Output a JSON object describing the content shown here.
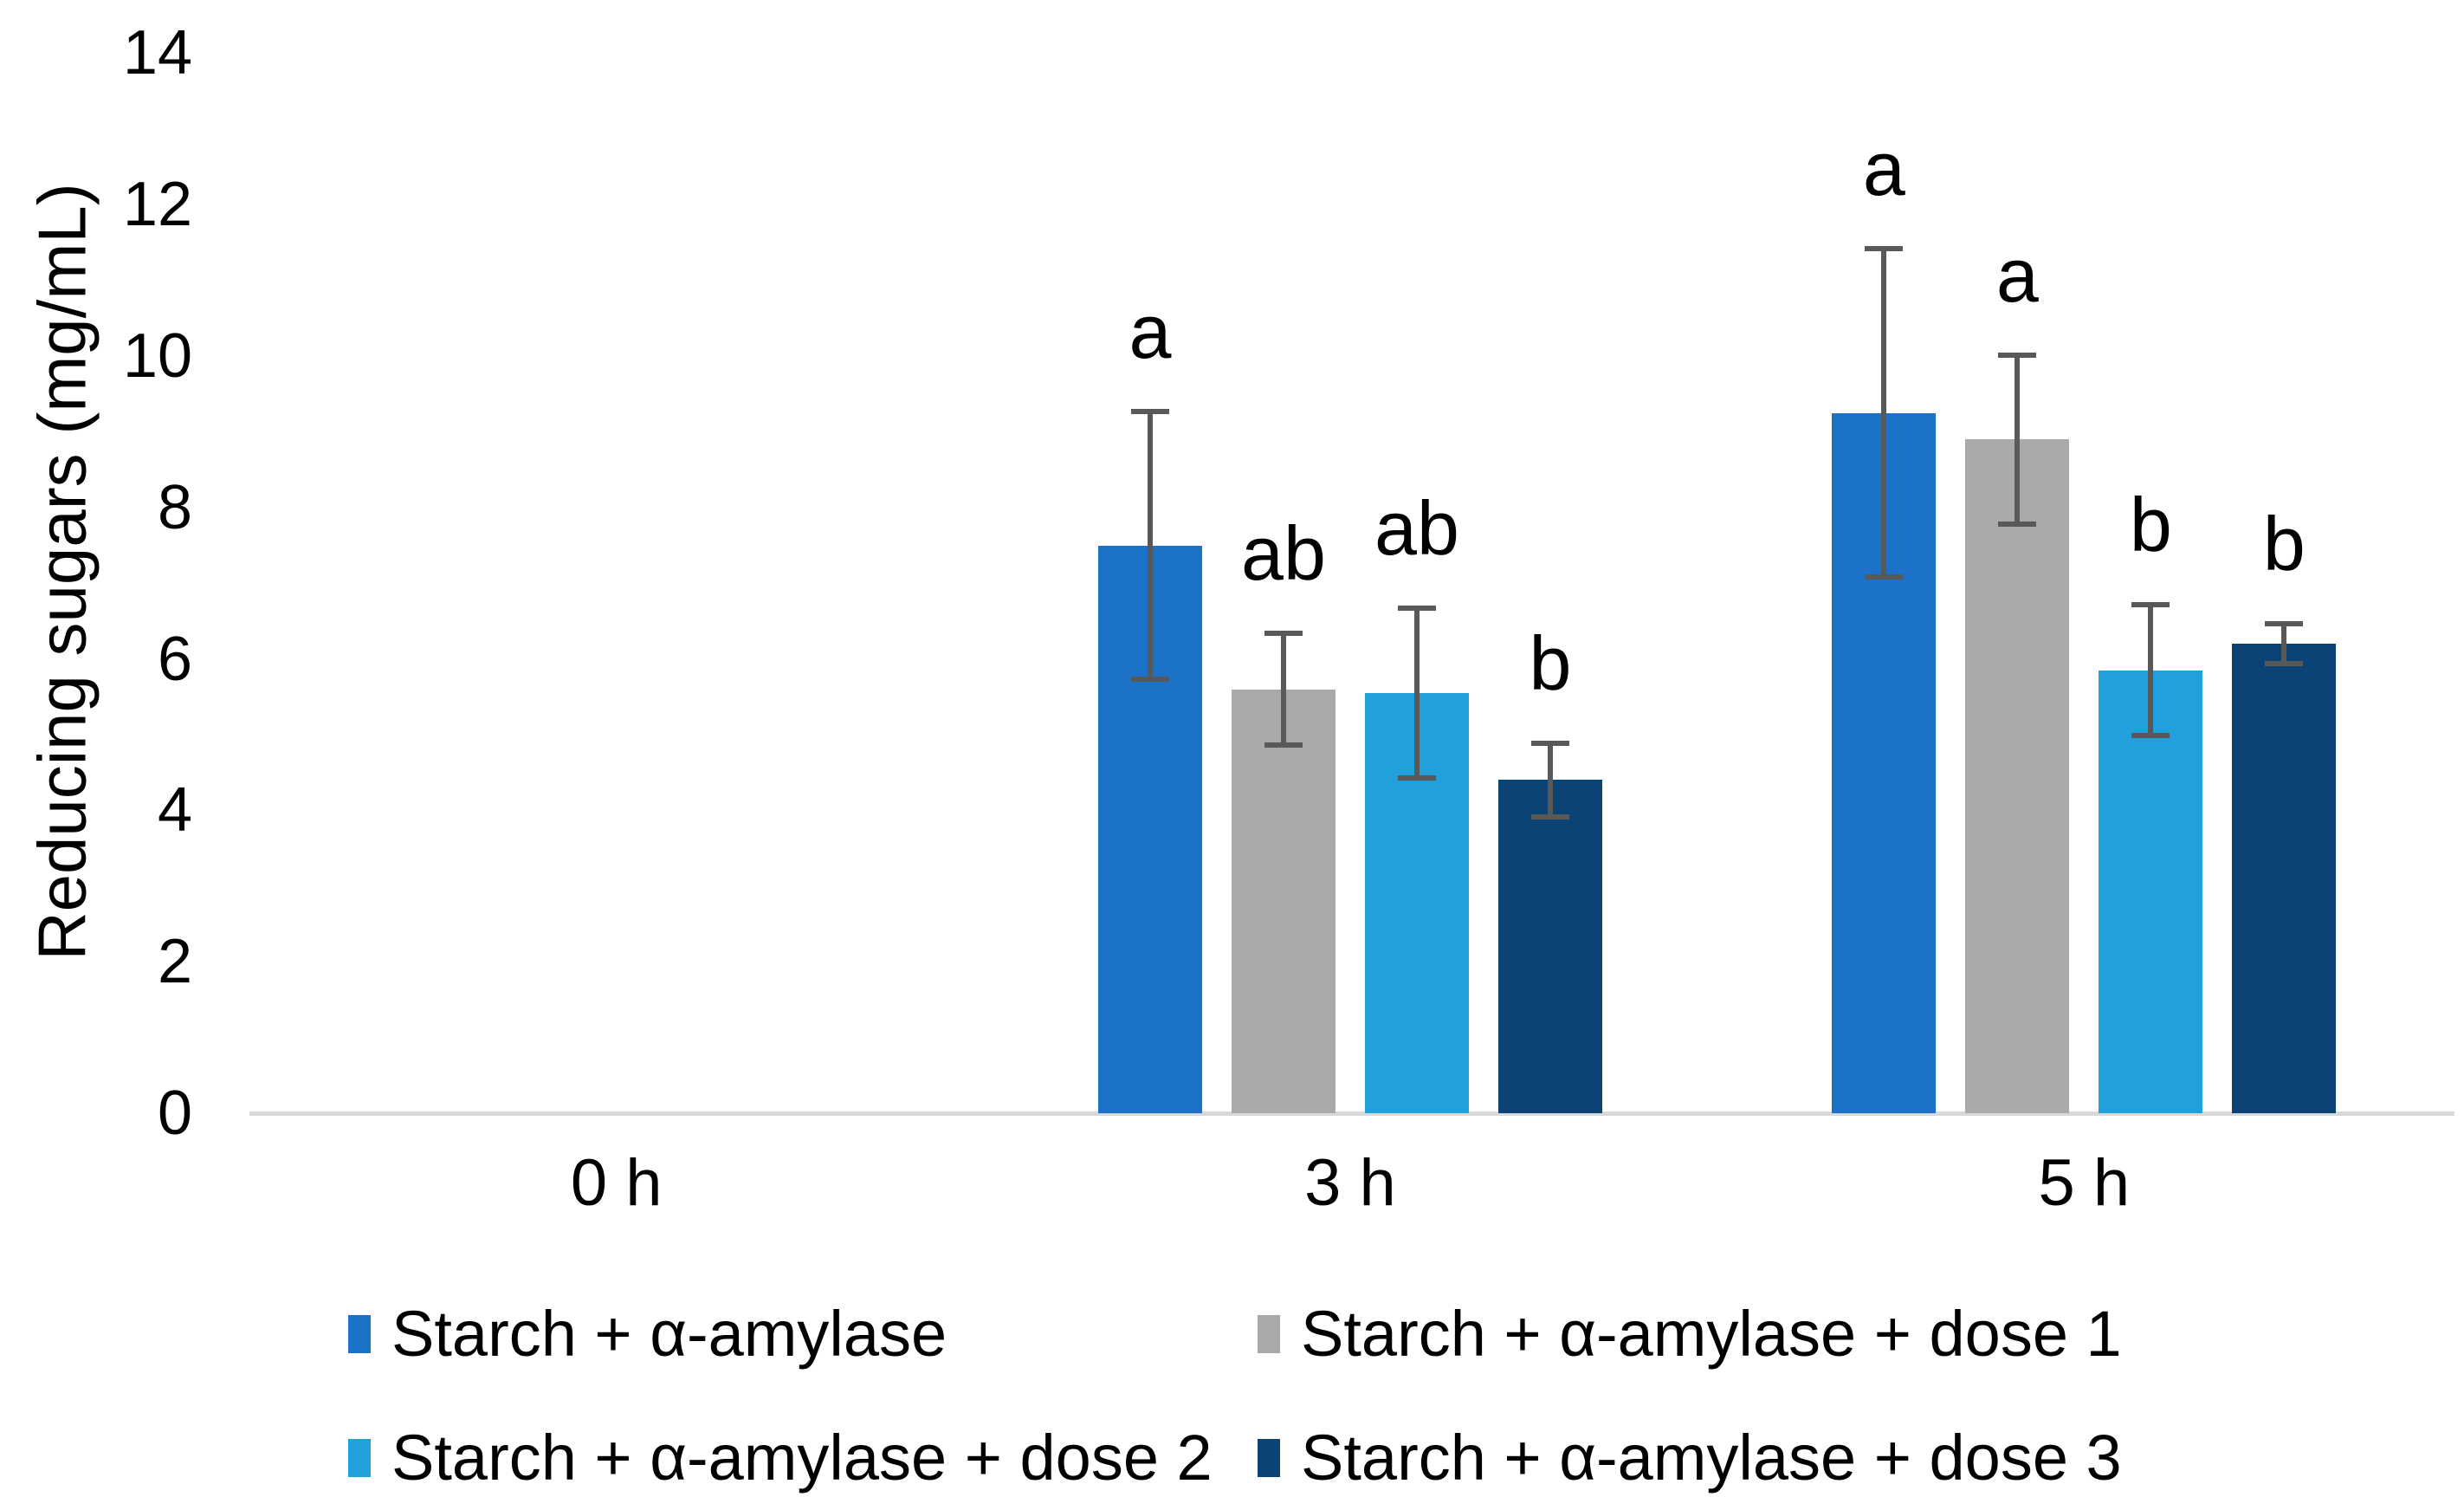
{
  "chart_data": {
    "type": "bar",
    "title": "",
    "ylabel": "Reducing sugars (mg/mL)",
    "xlabel": "",
    "categories": [
      "0 h",
      "3 h",
      "5 h"
    ],
    "ylim": [
      0,
      14
    ],
    "yticks": [
      0,
      2,
      4,
      6,
      8,
      10,
      12,
      14
    ],
    "grid": false,
    "legend_position": "bottom",
    "axis_line_color": "#d9d9d9",
    "error_bar_color": "#595959",
    "series": [
      {
        "name": "Starch + α-amylase",
        "color": "#1b72c8",
        "values": [
          0,
          7.5,
          9.25
        ],
        "errors": [
          0,
          1.8,
          2.2
        ],
        "sig_labels": [
          "",
          "a",
          "a"
        ]
      },
      {
        "name": "Starch + α-amylase + dose 1",
        "color": "#a9a9a9",
        "values": [
          0,
          5.6,
          8.9
        ],
        "errors": [
          0,
          0.77,
          1.15
        ],
        "sig_labels": [
          "",
          "ab",
          "a"
        ]
      },
      {
        "name": "Starch + α-amylase + dose 2",
        "color": "#21a0dc",
        "values": [
          0,
          5.55,
          5.85
        ],
        "errors": [
          0,
          1.16,
          0.9
        ],
        "sig_labels": [
          "",
          "ab",
          "b"
        ]
      },
      {
        "name": "Starch + α-amylase + dose 3",
        "color": "#0b4377",
        "values": [
          0,
          4.4,
          6.2
        ],
        "errors": [
          0,
          0.52,
          0.3
        ],
        "sig_labels": [
          "",
          "b",
          "b"
        ]
      }
    ]
  }
}
